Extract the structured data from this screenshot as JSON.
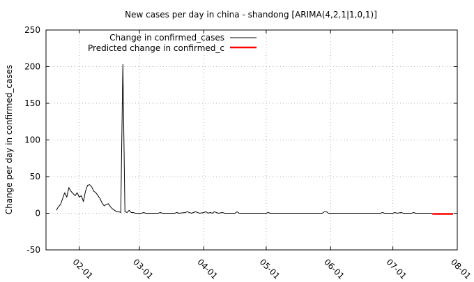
{
  "chart_data": {
    "type": "line",
    "title": "New cases per day in china - shandong [ARIMA(4,2,1|1,0,1)]",
    "xlabel": "",
    "ylabel": "Change per day in confirmed_cases",
    "x_type": "date",
    "xlim": [
      "2020-01-16",
      "2020-08-01"
    ],
    "ylim": [
      -50,
      250
    ],
    "grid": true,
    "legend_position": "top-left",
    "y_ticks": [
      -50,
      0,
      50,
      100,
      150,
      200,
      250
    ],
    "x_ticks": [
      {
        "date": "2020-02-01",
        "label": "02-01"
      },
      {
        "date": "2020-03-01",
        "label": "03-01"
      },
      {
        "date": "2020-04-01",
        "label": "04-01"
      },
      {
        "date": "2020-05-01",
        "label": "05-01"
      },
      {
        "date": "2020-06-01",
        "label": "06-01"
      },
      {
        "date": "2020-07-01",
        "label": "07-01"
      },
      {
        "date": "2020-08-01",
        "label": "08-01"
      }
    ],
    "series": [
      {
        "name": "Change in confirmed_cases",
        "color": "#000000",
        "points": [
          [
            "2020-01-21",
            4
          ],
          [
            "2020-01-22",
            9
          ],
          [
            "2020-01-23",
            12
          ],
          [
            "2020-01-24",
            20
          ],
          [
            "2020-01-25",
            28
          ],
          [
            "2020-01-26",
            22
          ],
          [
            "2020-01-27",
            35
          ],
          [
            "2020-01-28",
            30
          ],
          [
            "2020-01-29",
            27
          ],
          [
            "2020-01-30",
            24
          ],
          [
            "2020-01-31",
            28
          ],
          [
            "2020-02-01",
            22
          ],
          [
            "2020-02-02",
            24
          ],
          [
            "2020-02-03",
            16
          ],
          [
            "2020-02-04",
            30
          ],
          [
            "2020-02-05",
            38
          ],
          [
            "2020-02-06",
            39
          ],
          [
            "2020-02-07",
            36
          ],
          [
            "2020-02-08",
            30
          ],
          [
            "2020-02-09",
            28
          ],
          [
            "2020-02-10",
            24
          ],
          [
            "2020-02-11",
            20
          ],
          [
            "2020-02-12",
            14
          ],
          [
            "2020-02-13",
            10
          ],
          [
            "2020-02-14",
            12
          ],
          [
            "2020-02-15",
            13
          ],
          [
            "2020-02-16",
            9
          ],
          [
            "2020-02-17",
            6
          ],
          [
            "2020-02-18",
            4
          ],
          [
            "2020-02-19",
            2
          ],
          [
            "2020-02-20",
            2
          ],
          [
            "2020-02-21",
            1
          ],
          [
            "2020-02-22",
            203
          ],
          [
            "2020-02-23",
            2
          ],
          [
            "2020-02-24",
            1
          ],
          [
            "2020-02-25",
            4
          ],
          [
            "2020-02-26",
            1
          ],
          [
            "2020-02-27",
            1
          ],
          [
            "2020-02-28",
            0
          ],
          [
            "2020-03-01",
            0
          ],
          [
            "2020-03-02",
            0
          ],
          [
            "2020-03-03",
            1
          ],
          [
            "2020-03-04",
            0
          ],
          [
            "2020-03-10",
            0
          ],
          [
            "2020-03-11",
            1
          ],
          [
            "2020-03-12",
            0
          ],
          [
            "2020-03-18",
            0
          ],
          [
            "2020-03-19",
            1
          ],
          [
            "2020-03-20",
            0
          ],
          [
            "2020-03-23",
            1
          ],
          [
            "2020-03-24",
            2
          ],
          [
            "2020-03-25",
            1
          ],
          [
            "2020-03-26",
            0
          ],
          [
            "2020-03-28",
            2
          ],
          [
            "2020-03-29",
            1
          ],
          [
            "2020-03-30",
            0
          ],
          [
            "2020-04-01",
            1
          ],
          [
            "2020-04-02",
            2
          ],
          [
            "2020-04-03",
            0
          ],
          [
            "2020-04-04",
            1
          ],
          [
            "2020-04-05",
            0
          ],
          [
            "2020-04-06",
            2
          ],
          [
            "2020-04-07",
            1
          ],
          [
            "2020-04-08",
            0
          ],
          [
            "2020-04-10",
            1
          ],
          [
            "2020-04-11",
            0
          ],
          [
            "2020-04-16",
            0
          ],
          [
            "2020-04-17",
            2
          ],
          [
            "2020-04-18",
            0
          ],
          [
            "2020-05-01",
            0
          ],
          [
            "2020-05-02",
            1
          ],
          [
            "2020-05-03",
            0
          ],
          [
            "2020-05-28",
            0
          ],
          [
            "2020-05-29",
            2
          ],
          [
            "2020-05-30",
            2
          ],
          [
            "2020-05-31",
            0
          ],
          [
            "2020-06-25",
            0
          ],
          [
            "2020-06-26",
            1
          ],
          [
            "2020-06-27",
            0
          ],
          [
            "2020-07-01",
            0
          ],
          [
            "2020-07-02",
            1
          ],
          [
            "2020-07-03",
            0
          ],
          [
            "2020-07-05",
            1
          ],
          [
            "2020-07-06",
            0
          ],
          [
            "2020-07-10",
            0
          ],
          [
            "2020-07-11",
            1
          ],
          [
            "2020-07-12",
            0
          ],
          [
            "2020-07-20",
            0
          ]
        ]
      },
      {
        "name": "Predicted change in confirmed_c",
        "color": "#ff0000",
        "points": [
          [
            "2020-07-20",
            -1
          ],
          [
            "2020-07-22",
            -1
          ],
          [
            "2020-07-24",
            -1
          ],
          [
            "2020-07-26",
            -1
          ],
          [
            "2020-07-28",
            -1
          ],
          [
            "2020-07-30",
            -1
          ]
        ]
      }
    ]
  }
}
